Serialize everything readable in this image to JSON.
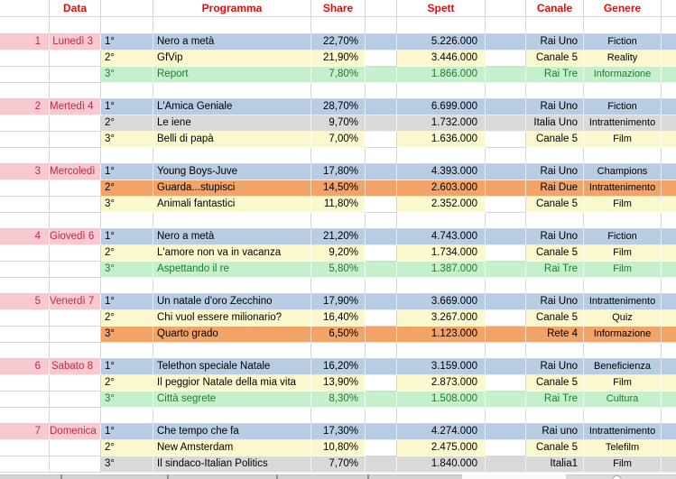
{
  "columns": [
    {
      "key": "daynum",
      "label": ""
    },
    {
      "key": "data",
      "label": "Data"
    },
    {
      "key": "rank",
      "label": ""
    },
    {
      "key": "programma",
      "label": "Programma"
    },
    {
      "key": "share",
      "label": "Share"
    },
    {
      "key": "gap1",
      "label": ""
    },
    {
      "key": "spett",
      "label": "Spett"
    },
    {
      "key": "gap2",
      "label": ""
    },
    {
      "key": "canale",
      "label": "Canale"
    },
    {
      "key": "genere",
      "label": "Genere"
    },
    {
      "key": "edge",
      "label": ""
    }
  ],
  "days": [
    {
      "num": "1",
      "name": "Lunedì 3",
      "entries": [
        {
          "rank": "1°",
          "programma": "Nero a metà",
          "share": "22,70%",
          "spett": "5.226.000",
          "canale": "Rai Uno",
          "genere": "Fiction",
          "color": "blue"
        },
        {
          "rank": "2°",
          "programma": "GfVip",
          "share": "21,90%",
          "spett": "3.446.000",
          "canale": "Canale 5",
          "genere": "Reality",
          "color": "yellow"
        },
        {
          "rank": "3°",
          "programma": "Report",
          "share": "7,80%",
          "spett": "1.866.000",
          "canale": "Rai Tre",
          "genere": "Informazione",
          "color": "green"
        }
      ]
    },
    {
      "num": "2",
      "name": "Mertedì 4",
      "entries": [
        {
          "rank": "1°",
          "programma": "L'Amica Geniale",
          "share": "28,70%",
          "spett": "6.699.000",
          "canale": "Rai Uno",
          "genere": "Fiction",
          "color": "blue"
        },
        {
          "rank": "2°",
          "programma": "Le iene",
          "share": "9,70%",
          "spett": "1.732.000",
          "canale": "Italia Uno",
          "genere": "Intrattenimento",
          "color": "gray"
        },
        {
          "rank": "3°",
          "programma": "Belli di papà",
          "share": "7,00%",
          "spett": "1.636.000",
          "canale": "Canale 5",
          "genere": "Film",
          "color": "yellow"
        }
      ]
    },
    {
      "num": "3",
      "name": "Mercoledì",
      "entries": [
        {
          "rank": "1°",
          "programma": "Young Boys-Juve",
          "share": "17,80%",
          "spett": "4.393.000",
          "canale": "Rai Uno",
          "genere": "Champions",
          "color": "blue"
        },
        {
          "rank": "2°",
          "programma": "Guarda...stupisci",
          "share": "14,50%",
          "spett": "2.603.000",
          "canale": "Rai Due",
          "genere": "Intrattenimento",
          "color": "orange"
        },
        {
          "rank": "3°",
          "programma": "Animali fantastici",
          "share": "11,80%",
          "spett": "2.352.000",
          "canale": "Canale 5",
          "genere": "Film",
          "color": "yellow"
        }
      ]
    },
    {
      "num": "4",
      "name": "Giovedì 6",
      "entries": [
        {
          "rank": "1°",
          "programma": "Nero a metà",
          "share": "21,20%",
          "spett": "4.743.000",
          "canale": "Rai Uno",
          "genere": "Fiction",
          "color": "blue"
        },
        {
          "rank": "2°",
          "programma": "L'amore non va in vacanza",
          "share": "9,20%",
          "spett": "1.734.000",
          "canale": "Canale 5",
          "genere": "Film",
          "color": "yellow"
        },
        {
          "rank": "3°",
          "programma": "Aspettando il re",
          "share": "5,80%",
          "spett": "1.387.000",
          "canale": "Rai Tre",
          "genere": "Film",
          "color": "green"
        }
      ]
    },
    {
      "num": "5",
      "name": "Venerdì 7",
      "entries": [
        {
          "rank": "1°",
          "programma": "Un natale d'oro Zecchino",
          "share": "17,90%",
          "spett": "3.669.000",
          "canale": "Rai Uno",
          "genere": "Intrattenimento",
          "color": "blue"
        },
        {
          "rank": "2°",
          "programma": "Chi vuol essere milionario?",
          "share": "16,40%",
          "spett": "3.267.000",
          "canale": "Canale 5",
          "genere": "Quiz",
          "color": "yellow"
        },
        {
          "rank": "3°",
          "programma": "Quarto grado",
          "share": "6,50%",
          "spett": "1.123.000",
          "canale": "Rete 4",
          "genere": "Informazione",
          "color": "orange"
        }
      ]
    },
    {
      "num": "6",
      "name": "Sabato 8",
      "entries": [
        {
          "rank": "1°",
          "programma": "Telethon speciale Natale",
          "share": "16,20%",
          "spett": "3.159.000",
          "canale": "Rai Uno",
          "genere": "Beneficienza",
          "color": "blue"
        },
        {
          "rank": "2°",
          "programma": "Il peggior Natale della mia vita",
          "share": "13,90%",
          "spett": "2.873.000",
          "canale": "Canale 5",
          "genere": "Film",
          "color": "yellow"
        },
        {
          "rank": "3°",
          "programma": "Città segrete",
          "share": "8,30%",
          "spett": "1.508.000",
          "canale": "Rai Tre",
          "genere": "Cultura",
          "color": "green"
        }
      ]
    },
    {
      "num": "7",
      "name": "Domenica",
      "entries": [
        {
          "rank": "1°",
          "programma": "Che tempo che fa",
          "share": "17,30%",
          "spett": "4.274.000",
          "canale": "Rai uno",
          "genere": "Intrattenimento",
          "color": "blue"
        },
        {
          "rank": "2°",
          "programma": "New Amsterdam",
          "share": "10,80%",
          "spett": "2.475.000",
          "canale": "Canale 5",
          "genere": "Telefilm",
          "color": "yellow"
        },
        {
          "rank": "3°",
          "programma": "Il sindaco-Italian Politics",
          "share": "7,70%",
          "spett": "1.840.000",
          "canale": "Italia1",
          "genere": "Film",
          "color": "gray"
        }
      ]
    }
  ],
  "colors": {
    "blue": "#b8cce4",
    "yellow": "#fcf8cd",
    "green": "#c6efce",
    "orange": "#f2a368",
    "gray": "#d9d9d9",
    "pink": "#f8c9d0",
    "green_text": "#217a2e",
    "day_text": "#c02942",
    "header_text": "#fe0000"
  }
}
